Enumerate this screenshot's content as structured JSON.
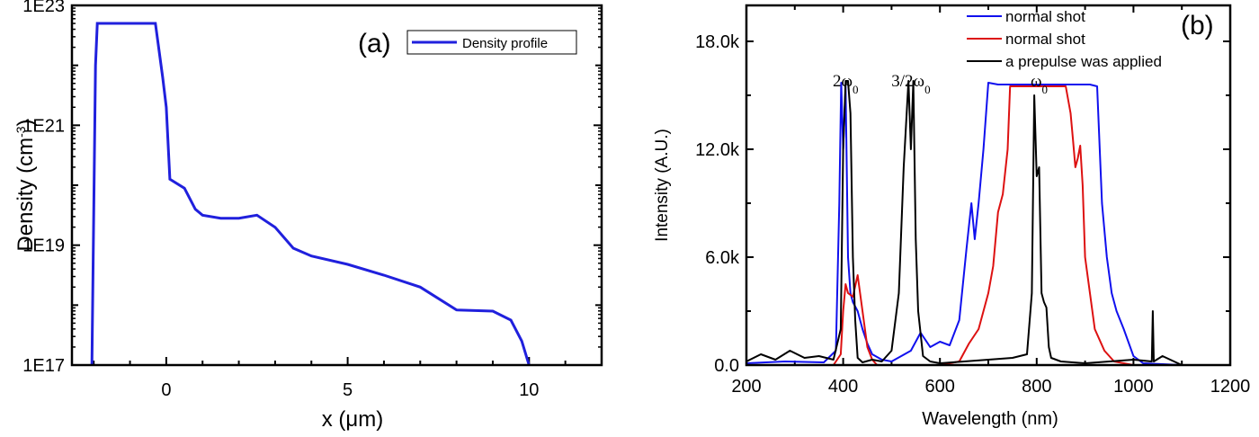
{
  "chart_data": [
    {
      "panel_label": "(a)",
      "type": "line",
      "xlabel": "x (μm)",
      "ylabel": "Density (cm-3)",
      "ylabel_main": "Density (cm",
      "ylabel_sup": "-3",
      "ylabel_close": ")",
      "y_scale": "log",
      "xlim": [
        -2.6,
        12
      ],
      "ylim_exp": [
        17,
        23
      ],
      "x_ticks": [
        0,
        5,
        10
      ],
      "x_tick_labels": [
        "0",
        "5",
        "10"
      ],
      "y_ticks_exp": [
        17,
        19,
        21,
        23
      ],
      "y_tick_labels": [
        "1E17",
        "1E19",
        "1E21",
        "1E23"
      ],
      "legend_position": "top-right",
      "colors": {
        "series": "#2020dd"
      },
      "series": [
        {
          "name": "Density profile",
          "x": [
            -2.05,
            -1.95,
            -1.9,
            -0.3,
            -0.1,
            0.0,
            0.1,
            0.5,
            0.8,
            1.0,
            1.5,
            2.0,
            2.5,
            3.0,
            3.5,
            4.0,
            5.0,
            6.0,
            7.0,
            8.0,
            9.0,
            9.5,
            9.8,
            10.0
          ],
          "y_exp": [
            17.0,
            22.0,
            22.7,
            22.7,
            21.8,
            21.3,
            20.1,
            19.95,
            19.6,
            19.5,
            19.45,
            19.45,
            19.5,
            19.3,
            18.95,
            18.82,
            18.68,
            18.5,
            18.3,
            17.92,
            17.9,
            17.75,
            17.4,
            17.0
          ]
        }
      ]
    },
    {
      "panel_label": "(b)",
      "type": "line",
      "xlabel": "Wavelength (nm)",
      "ylabel": "Intensity (A.U.)",
      "xlim": [
        200,
        1200
      ],
      "ylim": [
        0,
        20000
      ],
      "x_ticks": [
        200,
        400,
        600,
        800,
        1000,
        1200
      ],
      "x_tick_labels": [
        "200",
        "400",
        "600",
        "800",
        "1000",
        "1200"
      ],
      "y_ticks": [
        0,
        6000,
        12000,
        18000
      ],
      "y_tick_labels": [
        "0.0",
        "6.0k",
        "12.0k",
        "18.0k"
      ],
      "annotations": [
        {
          "base": "2ω",
          "sub": "0",
          "x": 405
        },
        {
          "base": "3/2ω",
          "sub": "0",
          "x": 540
        },
        {
          "base": "ω",
          "sub": "0",
          "x": 805
        }
      ],
      "legend_position": "top-right",
      "series": [
        {
          "name": "normal shot",
          "color": "#1010ee",
          "x": [
            200,
            280,
            360,
            385,
            392,
            396,
            400,
            405,
            410,
            415,
            420,
            430,
            440,
            450,
            460,
            480,
            500,
            520,
            540,
            560,
            580,
            600,
            620,
            640,
            655,
            665,
            672,
            680,
            690,
            700,
            720,
            760,
            800,
            840,
            880,
            910,
            925,
            935,
            945,
            955,
            965,
            980,
            1000,
            1020,
            1100
          ],
          "y": [
            100,
            200,
            150,
            800,
            9000,
            15700,
            12000,
            15500,
            6000,
            4000,
            3500,
            3000,
            2000,
            1200,
            600,
            300,
            200,
            500,
            800,
            1800,
            1000,
            1300,
            1100,
            2500,
            6500,
            9000,
            7000,
            9000,
            12000,
            15700,
            15600,
            15600,
            15600,
            15600,
            15600,
            15600,
            15500,
            9000,
            6000,
            4000,
            3000,
            2000,
            500,
            100,
            0
          ]
        },
        {
          "name": "normal shot",
          "color": "#dd1111",
          "x": [
            200,
            380,
            395,
            400,
            405,
            410,
            420,
            430,
            440,
            450,
            460,
            470,
            600,
            640,
            660,
            680,
            700,
            710,
            720,
            730,
            740,
            745,
            760,
            780,
            800,
            820,
            840,
            860,
            870,
            875,
            880,
            885,
            890,
            895,
            900,
            910,
            920,
            940,
            960,
            1000,
            1100
          ],
          "y": [
            0,
            0,
            600,
            3000,
            4500,
            4000,
            3800,
            5000,
            3000,
            1000,
            300,
            0,
            0,
            200,
            1200,
            2000,
            4000,
            5500,
            8500,
            9500,
            12000,
            15500,
            15500,
            15500,
            15500,
            15500,
            15500,
            15500,
            14000,
            12500,
            11000,
            11500,
            12200,
            10000,
            6000,
            4000,
            2000,
            800,
            200,
            0,
            0
          ]
        },
        {
          "name": "a prepulse was applied",
          "color": "#000000",
          "x": [
            200,
            230,
            260,
            290,
            320,
            350,
            380,
            395,
            400,
            405,
            410,
            415,
            420,
            425,
            430,
            440,
            460,
            480,
            500,
            515,
            525,
            535,
            540,
            545,
            550,
            555,
            565,
            580,
            600,
            650,
            700,
            750,
            780,
            790,
            795,
            800,
            805,
            810,
            815,
            820,
            825,
            830,
            850,
            900,
            1000,
            1038,
            1040,
            1042,
            1060,
            1100
          ],
          "y": [
            200,
            600,
            300,
            800,
            400,
            500,
            300,
            2000,
            12000,
            15800,
            15800,
            14000,
            6000,
            2500,
            400,
            150,
            300,
            200,
            800,
            4000,
            11000,
            15800,
            12000,
            15800,
            7000,
            3000,
            500,
            200,
            100,
            200,
            300,
            400,
            600,
            4000,
            15000,
            10500,
            11000,
            4000,
            3500,
            3200,
            1000,
            400,
            200,
            100,
            300,
            200,
            3000,
            200,
            500,
            0
          ]
        }
      ]
    }
  ]
}
